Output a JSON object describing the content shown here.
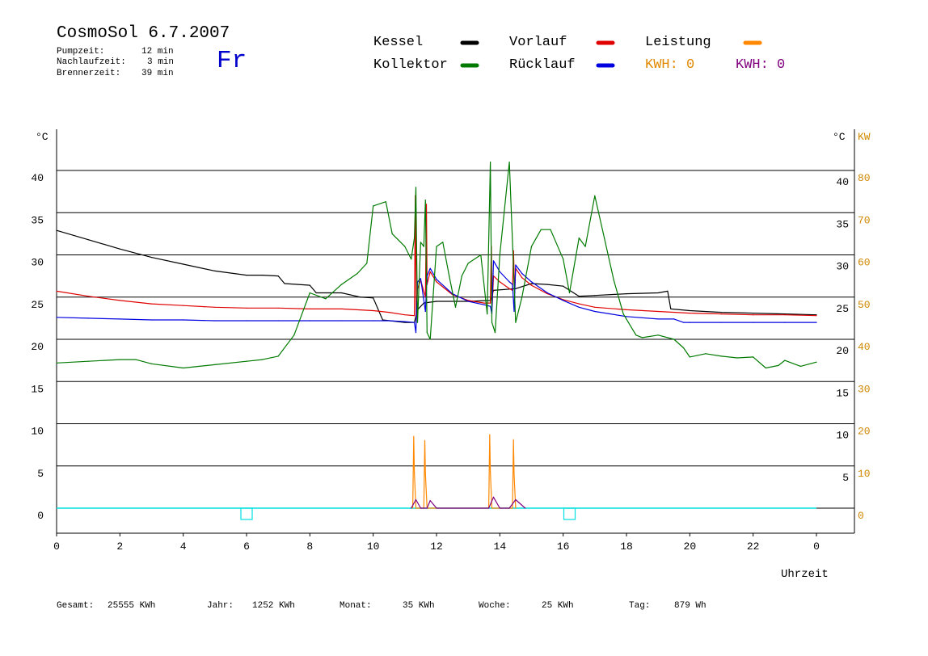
{
  "header": {
    "title": "CosmoSol 6.7.2007",
    "weekday": "Fr",
    "times": [
      {
        "label": "Pumpzeit:",
        "value": "12 min"
      },
      {
        "label": "Nachlaufzeit:",
        "value": "3 min"
      },
      {
        "label": "Brennerzeit:",
        "value": "39 min"
      }
    ]
  },
  "legend": {
    "kessel": "Kessel",
    "kollektor": "Kollektor",
    "vorlauf": "Vorlauf",
    "ruecklauf": "Rücklauf",
    "leistung": "Leistung",
    "kwh1": "KWH: 0",
    "kwh2": "KWH: 0"
  },
  "footer": {
    "gesamt_label": "Gesamt:",
    "gesamt_value": "25555 KWh",
    "jahr_label": "Jahr:",
    "jahr_value": "1252 KWh",
    "monat_label": "Monat:",
    "monat_value": "35 KWh",
    "woche_label": "Woche:",
    "woche_value": "25 KWh",
    "tag_label": "Tag:",
    "tag_value": "879 Wh"
  },
  "colors": {
    "kessel": "#000000",
    "kollektor": "#007a00",
    "vorlauf": "#e00000",
    "ruecklauf": "#0000e0",
    "leistung": "#ff8800",
    "kwh1": "#e08800",
    "kwh2": "#800080",
    "weekday": "#0000cc",
    "baseline": "#00e0e0",
    "right_axis2": "#d08800"
  },
  "chart_data": {
    "type": "line",
    "xlabel": "Uhrzeit",
    "ylabel_left": "°C",
    "ylabel_right": "°C",
    "ylabel_right2": "KW",
    "xlim": [
      0,
      24
    ],
    "ylim": [
      0,
      40
    ],
    "ylim_right2": [
      0,
      80
    ],
    "x_ticks": [
      "0",
      "2",
      "4",
      "6",
      "8",
      "10",
      "12",
      "14",
      "16",
      "18",
      "20",
      "22",
      "0"
    ],
    "y_ticks_left": [
      "0",
      "5",
      "10",
      "15",
      "20",
      "25",
      "30",
      "35",
      "40"
    ],
    "y_ticks_right": [
      "5",
      "10",
      "15",
      "20",
      "25",
      "30",
      "35",
      "40"
    ],
    "y_ticks_right2": [
      "0",
      "10",
      "20",
      "30",
      "40",
      "50",
      "60",
      "70",
      "80"
    ],
    "grid": true,
    "legend_placement": "top",
    "series": [
      {
        "name": "Kessel",
        "key": "kessel",
        "x": [
          0,
          1,
          2,
          3,
          4,
          5,
          6,
          6.5,
          7,
          7.2,
          8,
          8.2,
          9,
          9.6,
          10,
          10.3,
          11,
          11.3,
          11.4,
          11.6,
          12,
          13,
          13.7,
          13.8,
          14.5,
          15,
          15.5,
          16,
          16.5,
          17,
          18,
          19,
          19.3,
          19.4,
          20,
          21,
          22,
          23,
          24
        ],
        "y": [
          32.9,
          31.8,
          30.7,
          29.7,
          28.9,
          28.1,
          27.6,
          27.6,
          27.5,
          26.6,
          26.4,
          25.5,
          25.5,
          25.0,
          24.9,
          22.3,
          22.0,
          22.0,
          23.5,
          24.3,
          24.5,
          24.5,
          24.6,
          25.8,
          26.0,
          26.6,
          26.5,
          26.3,
          25.1,
          25.2,
          25.4,
          25.5,
          25.7,
          23.6,
          23.4,
          23.2,
          23.1,
          23.0,
          22.9
        ]
      },
      {
        "name": "Vorlauf",
        "key": "vorlauf",
        "x": [
          0,
          1,
          2,
          3,
          4,
          5,
          6,
          7,
          8,
          9,
          10,
          10.5,
          11,
          11.3,
          11.33,
          11.36,
          11.4,
          11.5,
          11.65,
          11.68,
          11.7,
          11.8,
          12,
          12.5,
          13,
          13.5,
          13.7,
          13.73,
          13.76,
          13.8,
          14,
          14.3,
          14.4,
          14.43,
          14.47,
          14.5,
          14.7,
          15,
          15.5,
          16,
          16.5,
          17,
          18,
          19,
          20,
          21,
          22,
          23,
          24
        ],
        "y": [
          25.7,
          25.1,
          24.6,
          24.2,
          24.0,
          23.8,
          23.7,
          23.7,
          23.6,
          23.6,
          23.4,
          23.2,
          22.9,
          22.8,
          37,
          22.0,
          26.0,
          27.0,
          25.0,
          36,
          26.5,
          28.0,
          26.8,
          25.3,
          24.6,
          24.3,
          24.3,
          31,
          24.0,
          27.5,
          26.8,
          26.0,
          25.8,
          30.5,
          25.5,
          28.4,
          27.3,
          26.4,
          25.4,
          24.7,
          24.2,
          23.8,
          23.5,
          23.3,
          23.1,
          23.0,
          22.9,
          22.9,
          22.8
        ]
      },
      {
        "name": "Rücklauf",
        "key": "ruecklauf",
        "x": [
          0,
          1,
          2,
          3,
          4,
          5,
          6,
          7,
          8,
          9,
          10,
          10.5,
          11,
          11.3,
          11.35,
          11.4,
          11.5,
          11.65,
          11.7,
          11.8,
          12,
          12.5,
          13,
          13.5,
          13.7,
          13.75,
          13.8,
          14,
          14.3,
          14.4,
          14.45,
          14.5,
          14.7,
          15,
          15.5,
          16,
          16.5,
          17,
          18,
          19,
          19.5,
          19.8,
          20,
          21,
          22,
          23,
          24
        ],
        "y": [
          22.6,
          22.5,
          22.4,
          22.3,
          22.3,
          22.2,
          22.2,
          22.2,
          22.2,
          22.2,
          22.2,
          22.2,
          22.1,
          22.0,
          20.8,
          26.8,
          27.2,
          23.3,
          27.5,
          28.4,
          27.1,
          25.4,
          24.5,
          24.1,
          23.9,
          23.0,
          29.3,
          28.0,
          26.8,
          26.5,
          23.3,
          28.8,
          27.8,
          26.8,
          25.5,
          24.6,
          23.8,
          23.3,
          22.7,
          22.4,
          22.4,
          22.0,
          22.0,
          22.0,
          22.0,
          22.0,
          22.0
        ]
      },
      {
        "name": "Kollektor",
        "key": "kollektor",
        "x": [
          0,
          1,
          2,
          2.5,
          3,
          4,
          5,
          6,
          6.5,
          7,
          7.5,
          8,
          8.5,
          9,
          9.5,
          9.8,
          10,
          10.4,
          10.6,
          11,
          11.2,
          11.3,
          11.35,
          11.4,
          11.5,
          11.6,
          11.65,
          11.7,
          11.8,
          11.9,
          12,
          12.2,
          12.4,
          12.6,
          12.8,
          13,
          13.4,
          13.6,
          13.7,
          13.75,
          13.85,
          14,
          14.3,
          14.5,
          14.7,
          15,
          15.3,
          15.6,
          16,
          16.2,
          16.5,
          16.7,
          17,
          17.3,
          17.6,
          17.9,
          18.3,
          18.5,
          19,
          19.5,
          19.8,
          20,
          20.5,
          21,
          21.5,
          22,
          22.4,
          22.8,
          23,
          23.5,
          24
        ],
        "y": [
          17.2,
          17.4,
          17.6,
          17.6,
          17.1,
          16.6,
          17.0,
          17.4,
          17.6,
          18.0,
          20.5,
          25.5,
          24.8,
          26.5,
          27.8,
          29.0,
          35.8,
          36.3,
          32.5,
          31.0,
          29.5,
          32.0,
          38,
          22.0,
          31.5,
          31.0,
          36.5,
          20.8,
          20.0,
          25.5,
          31.0,
          31.5,
          27.5,
          23.8,
          27.5,
          29.0,
          30.0,
          23.0,
          41,
          22.0,
          20.8,
          30.0,
          41,
          22.0,
          25.0,
          31.0,
          33.0,
          33.0,
          29.5,
          25.5,
          32.0,
          31.0,
          37.0,
          32.0,
          27.0,
          23.0,
          20.5,
          20.2,
          20.5,
          20.0,
          19.0,
          17.9,
          18.3,
          18.0,
          17.8,
          17.9,
          16.6,
          16.9,
          17.5,
          16.8,
          17.3
        ]
      },
      {
        "name": "Leistung",
        "key": "leistung",
        "x": [
          11.25,
          11.28,
          11.3,
          11.35,
          11.6,
          11.63,
          11.65,
          11.7,
          13.65,
          13.68,
          13.7,
          13.75,
          14.4,
          14.43,
          14.45,
          14.5
        ],
        "y": [
          0,
          8.5,
          4.2,
          0,
          0,
          8.0,
          4.0,
          0,
          0,
          8.7,
          4.3,
          0,
          0,
          8.1,
          3.9,
          0
        ]
      },
      {
        "name": "KWH2",
        "key": "kwh2",
        "x": [
          11.2,
          11.35,
          11.5,
          11.7,
          11.8,
          12.0,
          13.65,
          13.8,
          14.0,
          14.3,
          14.5,
          14.8
        ],
        "y": [
          0,
          1.0,
          0,
          0,
          0.9,
          0,
          0,
          1.3,
          0,
          0,
          1.0,
          0
        ]
      }
    ],
    "markers": [
      {
        "x": 6.0,
        "y": 0
      },
      {
        "x": 16.2,
        "y": 0
      }
    ]
  }
}
